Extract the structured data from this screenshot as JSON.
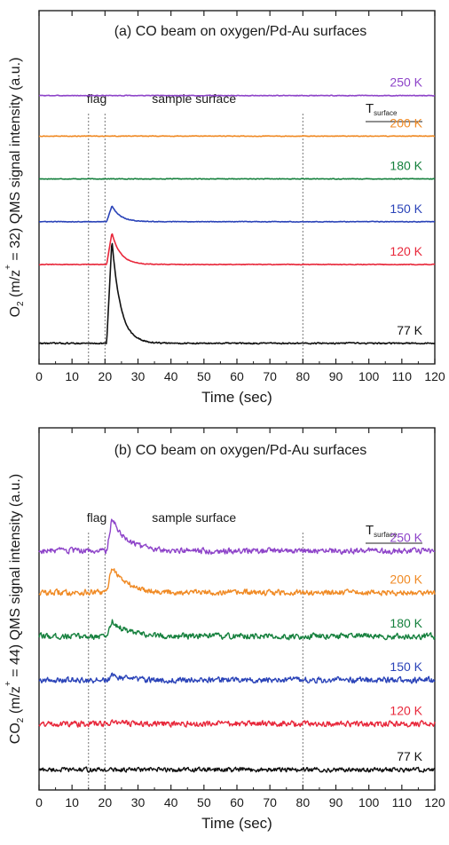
{
  "chart_data": [
    {
      "type": "line",
      "title": "(a) CO beam on oxygen/Pd-Au surfaces",
      "ylabel_parts": [
        "O",
        "2",
        " (m/z",
        "+",
        " = 32) QMS signal intensity (a.u.)"
      ],
      "xlabel": "Time (sec)",
      "xlim": [
        0,
        120
      ],
      "xticks": [
        0,
        10,
        20,
        30,
        40,
        50,
        60,
        70,
        80,
        90,
        100,
        110,
        120
      ],
      "annotations": {
        "flag": "flag",
        "sample": "sample surface"
      },
      "markers_x": [
        15,
        20,
        80
      ],
      "legend_title": [
        "T",
        "surface"
      ],
      "series": [
        {
          "name": "250 K",
          "color": "#8e44c9",
          "baseline": 5.5,
          "peak": 0,
          "noise": 0.01
        },
        {
          "name": "200 K",
          "color": "#f08a24",
          "baseline": 4.6,
          "peak": 0,
          "noise": 0.01
        },
        {
          "name": "180 K",
          "color": "#15803d",
          "baseline": 3.65,
          "peak": 0,
          "noise": 0.01
        },
        {
          "name": "150 K",
          "color": "#2a43b8",
          "baseline": 2.7,
          "peak": 0.35,
          "noise": 0.01
        },
        {
          "name": "120 K",
          "color": "#e8283b",
          "baseline": 1.75,
          "peak": 0.7,
          "noise": 0.01
        },
        {
          "name": "77 K",
          "color": "#111111",
          "baseline": 0.0,
          "peak": 2.3,
          "noise": 0.02
        }
      ],
      "ylim": [
        -0.3,
        6.4
      ]
    },
    {
      "type": "line",
      "title": "(b) CO beam on oxygen/Pd-Au surfaces",
      "ylabel_parts": [
        "CO",
        "2",
        " (m/z",
        "+",
        " = 44) QMS signal intensity (a.u.)"
      ],
      "xlabel": "Time (sec)",
      "xlim": [
        0,
        120
      ],
      "xticks": [
        0,
        10,
        20,
        30,
        40,
        50,
        60,
        70,
        80,
        90,
        100,
        110,
        120
      ],
      "annotations": {
        "flag": "flag",
        "sample": "sample surface"
      },
      "markers_x": [
        15,
        20,
        80
      ],
      "legend_title": [
        "T",
        "surface"
      ],
      "series": [
        {
          "name": "250 K",
          "color": "#8e44c9",
          "baseline": 5.0,
          "peak": 0.75,
          "noise": 0.09
        },
        {
          "name": "200 K",
          "color": "#f08a24",
          "baseline": 4.05,
          "peak": 0.6,
          "noise": 0.09
        },
        {
          "name": "180 K",
          "color": "#15803d",
          "baseline": 3.05,
          "peak": 0.35,
          "noise": 0.09
        },
        {
          "name": "150 K",
          "color": "#2a43b8",
          "baseline": 2.05,
          "peak": 0.1,
          "noise": 0.09
        },
        {
          "name": "120 K",
          "color": "#e8283b",
          "baseline": 1.05,
          "peak": 0.05,
          "noise": 0.09
        },
        {
          "name": "77 K",
          "color": "#111111",
          "baseline": 0.0,
          "peak": 0,
          "noise": 0.07
        }
      ],
      "ylim": [
        -0.3,
        6.8
      ]
    }
  ]
}
